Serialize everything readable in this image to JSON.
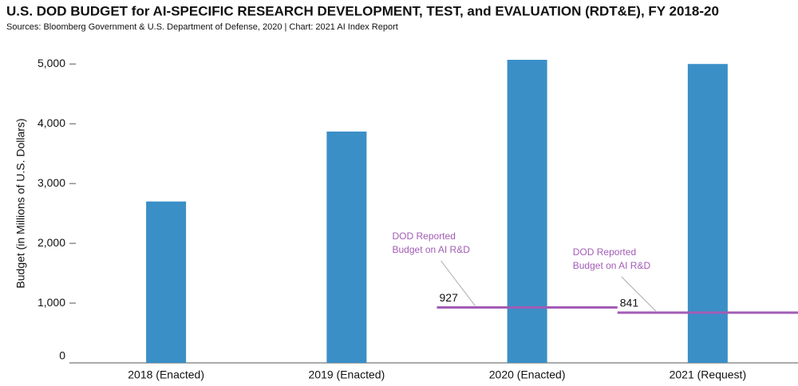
{
  "chart_data": {
    "type": "bar",
    "title": "U.S. DOD BUDGET for AI-SPECIFIC RESEARCH DEVELOPMENT, TEST, and EVALUATION (RDT&E), FY 2018-20",
    "subtitle": "Sources: Bloomberg Government & U.S. Department of Defense, 2020 | Chart: 2021 AI Index Report",
    "y_label": "Budget (in Millions of U.S. Dollars)",
    "categories": [
      "2018 (Enacted)",
      "2019 (Enacted)",
      "2020 (Enacted)",
      "2021 (Request)"
    ],
    "values": [
      2700,
      3870,
      5070,
      5000
    ],
    "color": "#3a8fc7",
    "ylim": [
      0,
      5270
    ],
    "yticks": [
      0,
      {
        "value": 1000,
        "label": "1,000"
      },
      {
        "value": 2000,
        "label": "2,000"
      },
      {
        "value": 3000,
        "label": "3,000"
      },
      {
        "value": 4000,
        "label": "4,000"
      },
      {
        "value": 5000,
        "label": "5,000"
      }
    ],
    "grid": false,
    "reference_lines": [
      {
        "label": [
          "DOD Reported",
          "Budget on AI R&D"
        ],
        "value": 927,
        "color": "#a25cb5"
      },
      {
        "label": [
          "DOD Reported",
          "Budget on AI R&D"
        ],
        "value": 841,
        "color": "#a25cb5"
      }
    ]
  }
}
